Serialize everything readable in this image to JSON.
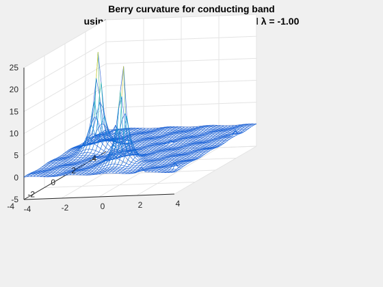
{
  "chart_data": {
    "type": "surface-mesh",
    "title": "Berry curvature for conducting band",
    "subtitle": "using parameters: V =-0.00, t = 1.0 and λ = -1.00",
    "xlabel": "",
    "ylabel": "",
    "zlabel": "",
    "xlim": [
      -4,
      4
    ],
    "ylim": [
      -4,
      4
    ],
    "zlim": [
      -5,
      25
    ],
    "xticks": [
      -4,
      -2,
      0,
      2,
      4
    ],
    "yticks": [
      -4,
      -2,
      0,
      2,
      4
    ],
    "zticks": [
      -5,
      0,
      5,
      10,
      15,
      20,
      25
    ],
    "grid": true,
    "colormap": "parula",
    "peaks": [
      {
        "x": 0.3,
        "y": -2.3,
        "z": 20
      },
      {
        "x": -2.4,
        "y": 0.3,
        "z": 20
      },
      {
        "x": -3.3,
        "y": 3.6,
        "z": 3
      },
      {
        "x": 2.2,
        "y": -4.0,
        "z": 3
      },
      {
        "x": 3.6,
        "y": -3.3,
        "z": 3
      },
      {
        "x": 3.8,
        "y": 2.2,
        "z": 3
      },
      {
        "x": -1.6,
        "y": 1.6,
        "z": 2
      },
      {
        "x": -1.6,
        "y": -1.6,
        "z": 2
      },
      {
        "x": 1.0,
        "y": 1.0,
        "z": 2
      }
    ]
  }
}
